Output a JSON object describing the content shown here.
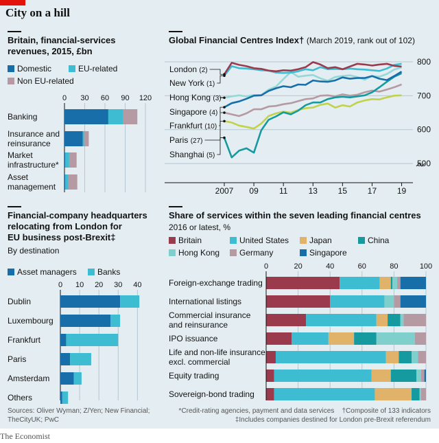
{
  "title": "City on a hill",
  "colors": {
    "britain": "#9b3a4d",
    "us": "#3ebcd2",
    "japan": "#e1b36a",
    "china": "#159aa0",
    "hongkong": "#7fd0cc",
    "germany": "#b59aa3",
    "singapore": "#176ea8",
    "domestic": "#176ea8",
    "eu": "#3ebcd2",
    "noneu": "#b59aa3",
    "london": "#9b3a4d",
    "newyork": "#3ebcd2",
    "hongkong_line": "#96d8d8",
    "singapore_line": "#176ea8",
    "frankfurt_line": "#b59aa3",
    "paris_line": "#c1d24b",
    "shanghai_line": "#159aa0"
  },
  "footer": {
    "sources": "Sources: Oliver Wyman; Z/Yen; New Financial; TheCityUK; PwC",
    "footnote1": "*Credit-rating agencies, payment and data services",
    "footnote2": "†Composite of 133 indicators",
    "footnote3": "‡Includes companies destined for London pre-Brexit referendum",
    "brand": "The Economist"
  },
  "chart_data": [
    {
      "type": "bar",
      "stacked": true,
      "orientation": "horizontal",
      "title": "Britain, financial-services revenues, 2015, £bn",
      "categories": [
        "Banking",
        "Insurance and reinsurance",
        "Market infrastructure*",
        "Asset management"
      ],
      "series": [
        {
          "name": "Domestic",
          "values": [
            65,
            27,
            1,
            1
          ]
        },
        {
          "name": "EU-related",
          "values": [
            22,
            2,
            6,
            5
          ]
        },
        {
          "name": "Non EU-related",
          "values": [
            21,
            7,
            11,
            13
          ]
        }
      ],
      "xlim": [
        0,
        120
      ],
      "xticks": [
        0,
        30,
        60,
        90,
        120
      ]
    },
    {
      "type": "line",
      "title": "Global Financial Centres Index†",
      "subtitle": "(March 2019, rank out of 102)",
      "x_labels": [
        "2007",
        "09",
        "11",
        "13",
        "15",
        "17",
        "19"
      ],
      "xlim": [
        2007,
        2019.3
      ],
      "ylim": [
        480,
        810
      ],
      "yticks": [
        500,
        600,
        700,
        800
      ],
      "series": [
        {
          "name": "London",
          "rank": "(2)",
          "points": [
            [
              2007,
              763
            ],
            [
              2007.5,
              797
            ],
            [
              2008,
              791
            ],
            [
              2008.5,
              787
            ],
            [
              2009,
              781
            ],
            [
              2009.5,
              779
            ],
            [
              2010,
              774
            ],
            [
              2010.5,
              772
            ],
            [
              2011,
              775
            ],
            [
              2011.5,
              774
            ],
            [
              2012,
              778
            ],
            [
              2012.5,
              784
            ],
            [
              2013,
              799
            ],
            [
              2013.5,
              792
            ],
            [
              2014,
              781
            ],
            [
              2014.5,
              784
            ],
            [
              2015,
              778
            ],
            [
              2015.5,
              786
            ],
            [
              2016,
              794
            ],
            [
              2016.5,
              792
            ],
            [
              2017,
              789
            ],
            [
              2017.5,
              792
            ],
            [
              2018,
              794
            ],
            [
              2018.5,
              788
            ],
            [
              2019,
              786
            ]
          ]
        },
        {
          "name": "New York",
          "rank": "(1)",
          "points": [
            [
              2007,
              759
            ],
            [
              2007.5,
              787
            ],
            [
              2008,
              781
            ],
            [
              2008.5,
              780
            ],
            [
              2009,
              778
            ],
            [
              2009.5,
              775
            ],
            [
              2010,
              774
            ],
            [
              2010.5,
              768
            ],
            [
              2011,
              767
            ],
            [
              2011.5,
              768
            ],
            [
              2012,
              772
            ],
            [
              2012.5,
              778
            ],
            [
              2013,
              775
            ],
            [
              2013.5,
              784
            ],
            [
              2014,
              778
            ],
            [
              2014.5,
              779
            ],
            [
              2015,
              778
            ],
            [
              2015.5,
              780
            ],
            [
              2016,
              778
            ],
            [
              2016.5,
              777
            ],
            [
              2017,
              775
            ],
            [
              2017.5,
              773
            ],
            [
              2018,
              780
            ],
            [
              2018.5,
              791
            ],
            [
              2019,
              794
            ]
          ]
        },
        {
          "name": "Hong Kong",
          "rank": "(3)",
          "points": [
            [
              2007,
              694
            ],
            [
              2007.5,
              698
            ],
            [
              2008,
              701
            ],
            [
              2008.5,
              698
            ],
            [
              2009,
              702
            ],
            [
              2009.5,
              702
            ],
            [
              2010,
              718
            ],
            [
              2010.5,
              727
            ],
            [
              2011,
              749
            ],
            [
              2011.5,
              770
            ],
            [
              2012,
              756
            ],
            [
              2012.5,
              759
            ],
            [
              2013,
              761
            ],
            [
              2013.5,
              751
            ],
            [
              2014,
              744
            ],
            [
              2014.5,
              755
            ],
            [
              2015,
              758
            ],
            [
              2015.5,
              760
            ],
            [
              2016,
              755
            ],
            [
              2016.5,
              747
            ],
            [
              2017,
              758
            ],
            [
              2017.5,
              756
            ],
            [
              2018,
              764
            ],
            [
              2018.5,
              777
            ],
            [
              2019,
              783
            ]
          ]
        },
        {
          "name": "Singapore",
          "rank": "(4)",
          "points": [
            [
              2007,
              666
            ],
            [
              2007.5,
              678
            ],
            [
              2008,
              683
            ],
            [
              2008.5,
              691
            ],
            [
              2009,
              700
            ],
            [
              2009.5,
              701
            ],
            [
              2010,
              714
            ],
            [
              2010.5,
              722
            ],
            [
              2011,
              728
            ],
            [
              2011.5,
              725
            ],
            [
              2012,
              733
            ],
            [
              2012.5,
              732
            ],
            [
              2013,
              745
            ],
            [
              2013.5,
              742
            ],
            [
              2014,
              741
            ],
            [
              2014.5,
              745
            ],
            [
              2015,
              754
            ],
            [
              2015.5,
              750
            ],
            [
              2016,
              752
            ],
            [
              2016.5,
              752
            ],
            [
              2017,
              758
            ],
            [
              2017.5,
              750
            ],
            [
              2018,
              746
            ],
            [
              2018.5,
              758
            ],
            [
              2019,
              771
            ]
          ]
        },
        {
          "name": "Frankfurt",
          "rank": "(10)",
          "points": [
            [
              2007,
              650
            ],
            [
              2007.5,
              645
            ],
            [
              2008,
              640
            ],
            [
              2008.5,
              648
            ],
            [
              2009,
              660
            ],
            [
              2009.5,
              660
            ],
            [
              2010,
              668
            ],
            [
              2010.5,
              670
            ],
            [
              2011,
              675
            ],
            [
              2011.5,
              678
            ],
            [
              2012,
              684
            ],
            [
              2012.5,
              690
            ],
            [
              2013,
              692
            ],
            [
              2013.5,
              700
            ],
            [
              2014,
              701
            ],
            [
              2014.5,
              698
            ],
            [
              2015,
              704
            ],
            [
              2015.5,
              700
            ],
            [
              2016,
              703
            ],
            [
              2016.5,
              710
            ],
            [
              2017,
              715
            ],
            [
              2017.5,
              712
            ],
            [
              2018,
              718
            ],
            [
              2018.5,
              725
            ],
            [
              2019,
              733
            ]
          ]
        },
        {
          "name": "Paris",
          "rank": "(27)",
          "points": [
            [
              2007,
              625
            ],
            [
              2007.5,
              621
            ],
            [
              2008,
              612
            ],
            [
              2008.5,
              608
            ],
            [
              2009,
              603
            ],
            [
              2009.5,
              618
            ],
            [
              2010,
              640
            ],
            [
              2010.5,
              648
            ],
            [
              2011,
              653
            ],
            [
              2011.5,
              650
            ],
            [
              2012,
              658
            ],
            [
              2012.5,
              663
            ],
            [
              2013,
              665
            ],
            [
              2013.5,
              673
            ],
            [
              2014,
              677
            ],
            [
              2014.5,
              665
            ],
            [
              2015,
              672
            ],
            [
              2015.5,
              668
            ],
            [
              2016,
              680
            ],
            [
              2016.5,
              686
            ],
            [
              2017,
              690
            ],
            [
              2017.5,
              689
            ],
            [
              2018,
              695
            ],
            [
              2018.5,
              700
            ],
            [
              2019,
              701
            ]
          ]
        },
        {
          "name": "Shanghai",
          "rank": "(5)",
          "points": [
            [
              2007,
              576
            ],
            [
              2007.5,
              518
            ],
            [
              2008,
              538
            ],
            [
              2008.5,
              545
            ],
            [
              2009,
              532
            ],
            [
              2009.5,
              598
            ],
            [
              2010,
              629
            ],
            [
              2010.5,
              639
            ],
            [
              2011,
              651
            ],
            [
              2011.5,
              645
            ],
            [
              2012,
              656
            ],
            [
              2012.5,
              672
            ],
            [
              2013,
              680
            ],
            [
              2013.5,
              680
            ],
            [
              2014,
              690
            ],
            [
              2014.5,
              695
            ],
            [
              2015,
              697
            ],
            [
              2015.5,
              695
            ],
            [
              2016,
              698
            ],
            [
              2016.5,
              701
            ],
            [
              2017,
              710
            ],
            [
              2017.5,
              725
            ],
            [
              2018,
              741
            ],
            [
              2018.5,
              756
            ],
            [
              2019,
              766
            ]
          ]
        }
      ]
    },
    {
      "type": "bar",
      "stacked": true,
      "orientation": "horizontal",
      "title": "Financial-company headquarters relocating from London for EU business post-Brexit‡",
      "subtitle": "By destination",
      "categories": [
        "Dublin",
        "Luxembourg",
        "Frankfurt",
        "Paris",
        "Amsterdam",
        "Others"
      ],
      "series": [
        {
          "name": "Asset managers",
          "values": [
            31,
            26,
            3,
            5,
            7,
            1
          ]
        },
        {
          "name": "Banks",
          "values": [
            10,
            5,
            27,
            11,
            4,
            3
          ]
        }
      ],
      "xlim": [
        0,
        42
      ],
      "xticks": [
        0,
        10,
        20,
        30,
        40
      ]
    },
    {
      "type": "bar",
      "stacked": true,
      "orientation": "horizontal",
      "title": "Share of services within the seven leading financial centres",
      "subtitle": "2016 or latest, %",
      "categories": [
        "Foreign-exchange trading",
        "International listings",
        "Commercial insurance and reinsurance",
        "IPO issuance",
        "Life and non-life insurance excl. commercial",
        "Equity trading",
        "Sovereign-bond trading"
      ],
      "series": [
        {
          "name": "Britain",
          "values": [
            46,
            40,
            25,
            16,
            6,
            5,
            5
          ]
        },
        {
          "name": "United States",
          "values": [
            25,
            34,
            44,
            23,
            69,
            61,
            63
          ]
        },
        {
          "name": "Japan",
          "values": [
            7,
            0,
            7,
            16,
            8,
            12,
            23
          ]
        },
        {
          "name": "China",
          "values": [
            1,
            0,
            8,
            14,
            8,
            16,
            5
          ]
        },
        {
          "name": "Hong Kong",
          "values": [
            3,
            6,
            2,
            24,
            4,
            3,
            1
          ]
        },
        {
          "name": "Germany",
          "values": [
            2,
            4,
            14,
            7,
            5,
            2,
            3
          ]
        },
        {
          "name": "Singapore",
          "values": [
            16,
            16,
            0,
            0,
            0,
            1,
            0
          ]
        }
      ],
      "xlim": [
        0,
        100
      ],
      "xticks": [
        0,
        20,
        40,
        60,
        80,
        100
      ]
    }
  ],
  "labels": {
    "c1_domestic": "Domestic",
    "c1_eu": "EU-related",
    "c1_noneu": "Non EU-related",
    "c1_cat0": "Banking",
    "c1_cat1a": "Insurance and",
    "c1_cat1b": "reinsurance",
    "c1_cat2a": "Market",
    "c1_cat2b": "infrastructure*",
    "c1_cat3a": "Asset",
    "c1_cat3b": "management",
    "c1_title_a": "Britain, financial-services",
    "c1_title_b": "revenues, 2015, £bn",
    "c2_title": "Global Financial Centres Index†",
    "c2_sub": "(March 2019, rank out of 102)",
    "c3_title_a": "Financial-company headquarters",
    "c3_title_b": "relocating from London for",
    "c3_title_c": "EU business post-Brexit‡",
    "c3_sub": "By destination",
    "c3_am": "Asset managers",
    "c3_banks": "Banks",
    "c4_title": "Share of services within the seven leading financial centres",
    "c4_sub": "2016 or latest, %",
    "c4_cat2a": "Commercial insurance",
    "c4_cat2b": "and reinsurance",
    "c4_cat4a": "Life and non-life insurance",
    "c4_cat4b": "excl. commercial"
  }
}
